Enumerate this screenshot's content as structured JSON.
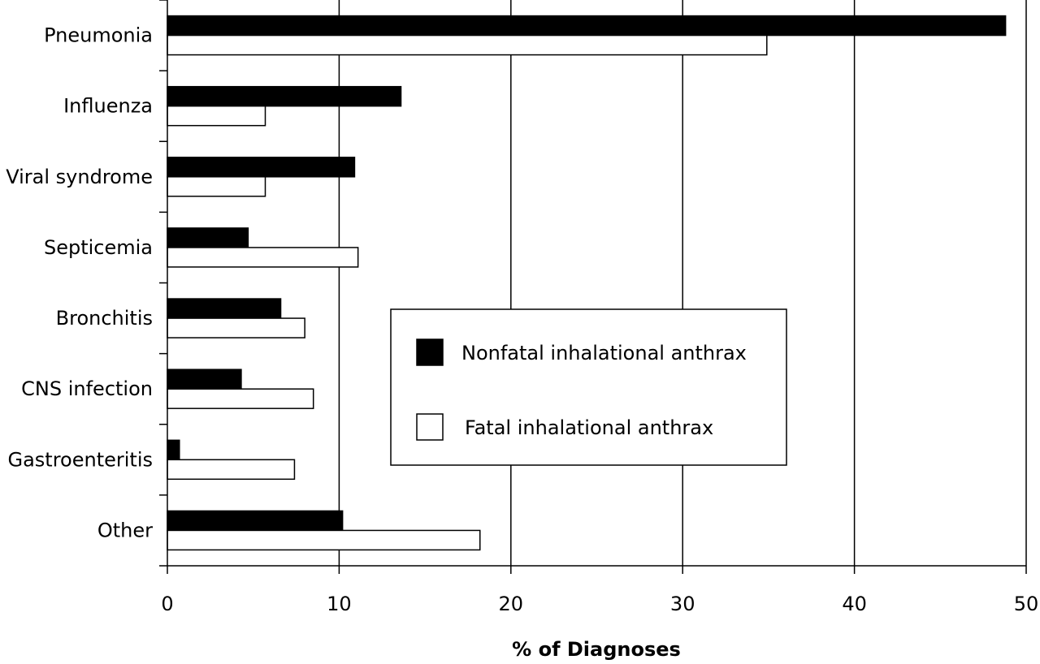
{
  "chart_data": {
    "type": "bar",
    "orientation": "horizontal",
    "categories": [
      "Pneumonia",
      "Influenza",
      "Viral syndrome",
      "Septicemia",
      "Bronchitis",
      "CNS infection",
      "Gastroenteritis",
      "Other"
    ],
    "series": [
      {
        "name": "Nonfatal inhalational anthrax",
        "color": "#000000",
        "values": [
          48.8,
          13.6,
          10.9,
          4.7,
          6.6,
          4.3,
          0.7,
          10.2
        ]
      },
      {
        "name": "Fatal inhalational anthrax",
        "color": "#ffffff",
        "values": [
          34.9,
          5.7,
          5.7,
          11.1,
          8.0,
          8.5,
          7.4,
          18.2
        ]
      }
    ],
    "xlabel": "% of Diagnoses",
    "ylabel": "",
    "xlim": [
      0,
      50
    ],
    "xticks": [
      0,
      10,
      20,
      30,
      40,
      50
    ],
    "xtick_labels": [
      "0",
      "10",
      "20",
      "30",
      "40",
      "50"
    ],
    "grid": "vertical",
    "legend_position": "center"
  }
}
